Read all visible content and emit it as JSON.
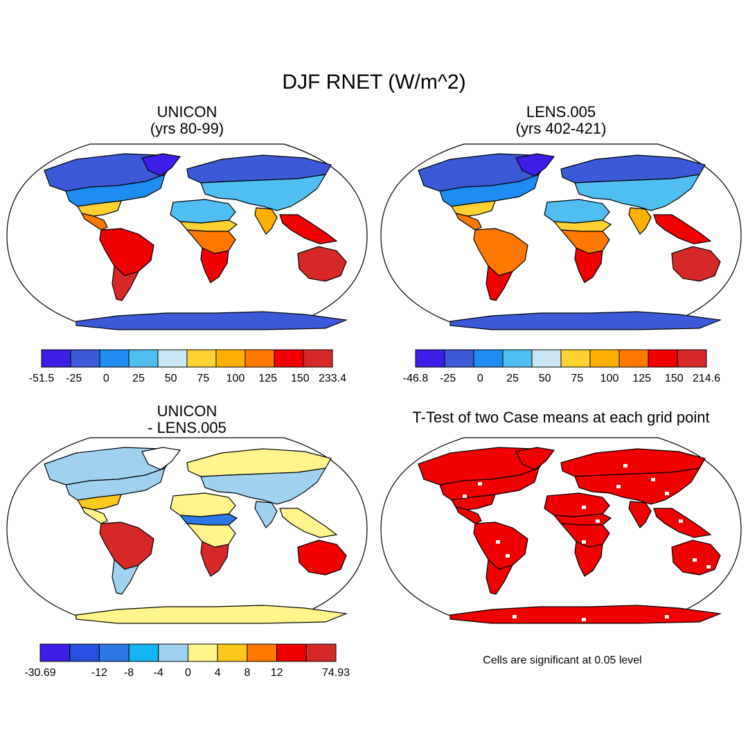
{
  "figure": {
    "title": "DJF RNET (W/m^2)"
  },
  "panels": [
    {
      "id": "unicon",
      "title_lines": [
        "UNICON",
        "(yrs 80-99)"
      ],
      "colorbar": {
        "colors": [
          "#3c1ee6",
          "#3c5ad7",
          "#1e8cf0",
          "#50bef0",
          "#c8e6f5",
          "#ffd232",
          "#ffaf00",
          "#ff7800",
          "#f00000",
          "#d72828"
        ],
        "labels": [
          "-51.5",
          "-25",
          "0",
          "25",
          "50",
          "75",
          "100",
          "125",
          "150",
          "233.4"
        ]
      },
      "regions": {
        "north_america_arctic": "#3c5ad7",
        "north_america_mid": "#1e8cf0",
        "north_america_south": "#ffd232",
        "central_america": "#ff7800",
        "south_america": "#f00000",
        "south_america_south": "#d72828",
        "greenland": "#3c1ee6",
        "eurasia_north": "#3c5ad7",
        "eurasia_mid": "#50bef0",
        "north_africa": "#50bef0",
        "sahel": "#ffd232",
        "africa_central": "#ff7800",
        "africa_south": "#f00000",
        "india": "#ffaf00",
        "se_asia": "#f00000",
        "australia": "#d72828",
        "antarctica": "#3c5ad7"
      }
    },
    {
      "id": "lens",
      "title_lines": [
        "LENS.005",
        "(yrs 402-421)"
      ],
      "colorbar": {
        "colors": [
          "#3c1ee6",
          "#3c5ad7",
          "#1e8cf0",
          "#50bef0",
          "#c8e6f5",
          "#ffd232",
          "#ffaf00",
          "#ff7800",
          "#f00000",
          "#d72828"
        ],
        "labels": [
          "-46.8",
          "-25",
          "0",
          "25",
          "50",
          "75",
          "100",
          "125",
          "150",
          "214.6"
        ]
      },
      "regions": {
        "north_america_arctic": "#3c5ad7",
        "north_america_mid": "#1e8cf0",
        "north_america_south": "#ffd232",
        "central_america": "#ff7800",
        "south_america": "#ff7800",
        "south_america_south": "#f00000",
        "greenland": "#3c1ee6",
        "eurasia_north": "#3c5ad7",
        "eurasia_mid": "#50bef0",
        "north_africa": "#50bef0",
        "sahel": "#ffd232",
        "africa_central": "#ff7800",
        "africa_south": "#f00000",
        "india": "#ffaf00",
        "se_asia": "#f00000",
        "australia": "#d72828",
        "antarctica": "#3c5ad7"
      }
    },
    {
      "id": "diff",
      "title_lines": [
        "UNICON",
        "- LENS.005"
      ],
      "colorbar": {
        "colors": [
          "#3c1ee6",
          "#2850e1",
          "#2d78e6",
          "#14b4f0",
          "#a0d2f0",
          "#fff58c",
          "#ffc81e",
          "#ff7800",
          "#f00000",
          "#d72828"
        ],
        "labels": [
          "-30.69",
          "",
          "-12",
          "-8",
          "-4",
          "0",
          "4",
          "8",
          "12",
          "",
          "74.93"
        ]
      },
      "regions": {
        "north_america_arctic": "#a0d2f0",
        "north_america_mid": "#a0d2f0",
        "north_america_south": "#ffc81e",
        "central_america": "#fff58c",
        "south_america": "#d72828",
        "south_america_south": "#a0d2f0",
        "greenland": "#ffffff",
        "eurasia_north": "#fff58c",
        "eurasia_mid": "#a0d2f0",
        "north_africa": "#fff58c",
        "sahel": "#2d78e6",
        "africa_central": "#fff58c",
        "africa_south": "#d72828",
        "india": "#a0d2f0",
        "se_asia": "#fff58c",
        "australia": "#f00000",
        "antarctica": "#fff58c"
      }
    },
    {
      "id": "ttest",
      "title_lines": [
        "T-Test of two Case means at each grid point"
      ],
      "note": "Cells are significant at 0.05 level",
      "significant_color": "#f00000"
    }
  ]
}
